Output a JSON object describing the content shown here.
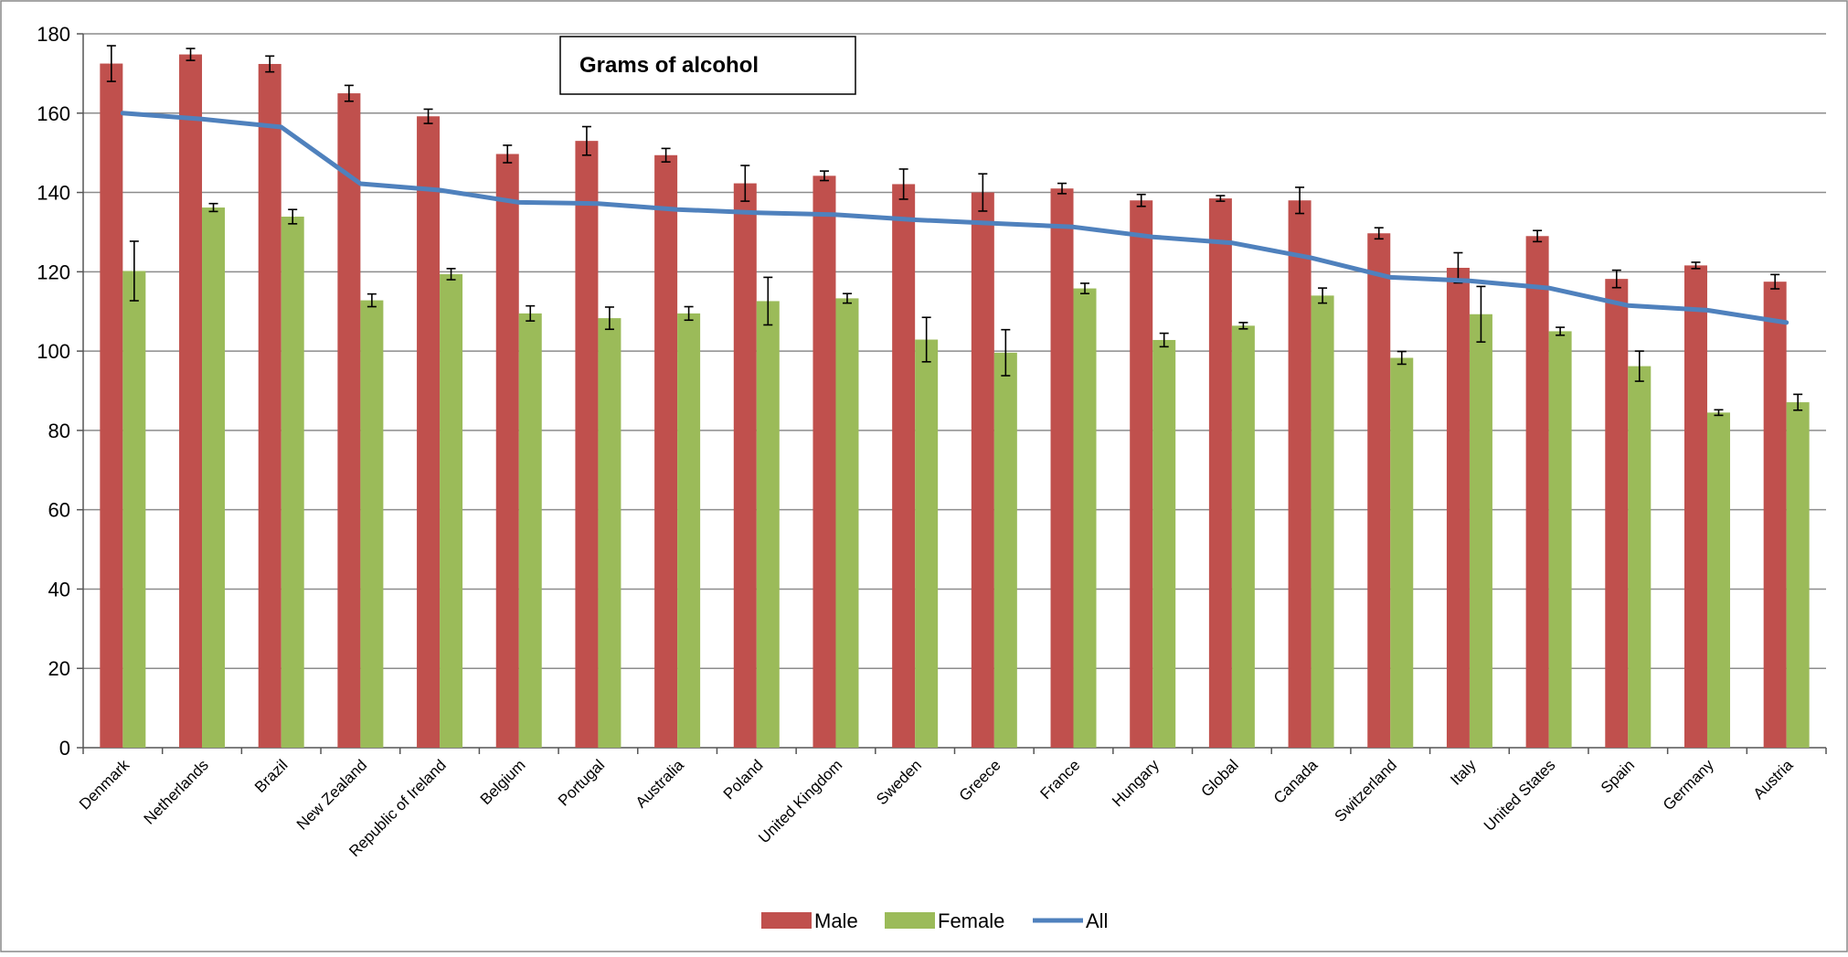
{
  "chart_data": {
    "type": "bar",
    "title": "Grams of alcohol",
    "xlabel": "",
    "ylabel": "",
    "ylim": [
      0,
      180
    ],
    "yticks": [
      0,
      20,
      40,
      60,
      80,
      100,
      120,
      140,
      160,
      180
    ],
    "grid": true,
    "legend_position": "bottom",
    "categories": [
      "Denmark",
      "Netherlands",
      "Brazil",
      "New Zealand",
      "Republic of Ireland",
      "Belgium",
      "Portugal",
      "Australia",
      "Poland",
      "United Kingdom",
      "Sweden",
      "Greece",
      "France",
      "Hungary",
      "Global",
      "Canada",
      "Switzerland",
      "Italy",
      "United States",
      "Spain",
      "Germany",
      "Austria"
    ],
    "series": [
      {
        "name": "Male",
        "kind": "bar",
        "color": "#c0504d",
        "values": [
          172.5,
          174.8,
          172.4,
          165.0,
          159.2,
          149.7,
          153.0,
          149.4,
          142.3,
          144.2,
          142.1,
          140.0,
          141.0,
          138.0,
          138.5,
          138.0,
          129.7,
          121.0,
          129.0,
          118.2,
          121.6,
          117.5
        ],
        "error": [
          4.5,
          1.5,
          2.0,
          2.0,
          1.8,
          2.2,
          3.6,
          1.7,
          4.5,
          1.2,
          3.8,
          4.7,
          1.3,
          1.5,
          0.7,
          3.3,
          1.4,
          3.8,
          1.4,
          2.2,
          0.8,
          1.8
        ]
      },
      {
        "name": "Female",
        "kind": "bar",
        "color": "#9bbb59",
        "values": [
          120.2,
          136.2,
          133.9,
          112.8,
          119.4,
          109.5,
          108.3,
          109.5,
          112.6,
          113.3,
          102.9,
          99.6,
          115.8,
          102.8,
          106.4,
          114.0,
          98.3,
          109.3,
          105.0,
          96.2,
          84.5,
          87.1
        ]
      },
      {
        "name": "All",
        "kind": "line",
        "color": "#4f81bd",
        "values": [
          160.0,
          158.5,
          156.5,
          142.2,
          140.6,
          137.5,
          137.2,
          135.7,
          134.9,
          134.4,
          133.1,
          132.2,
          131.3,
          128.8,
          127.3,
          123.5,
          118.6,
          117.7,
          115.9,
          111.5,
          110.3,
          107.2
        ]
      }
    ],
    "female_error": [
      7.5,
      1.0,
      1.8,
      1.6,
      1.4,
      1.9,
      2.8,
      1.7,
      6.0,
      1.2,
      5.6,
      5.8,
      1.3,
      1.7,
      0.8,
      1.9,
      1.6,
      7.0,
      1.0,
      3.8,
      0.7,
      2.0
    ]
  }
}
